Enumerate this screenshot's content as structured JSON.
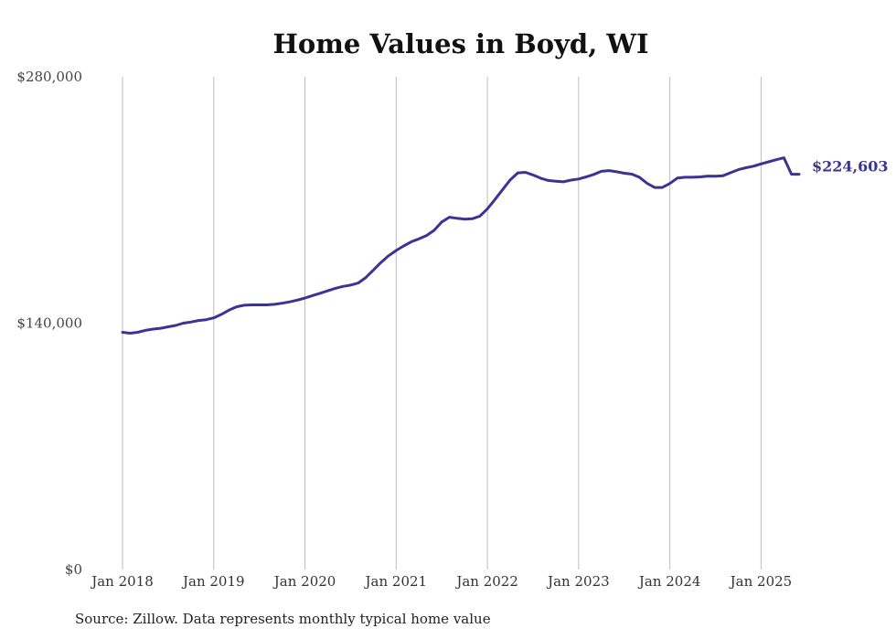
{
  "chart_data": {
    "type": "line",
    "title": "Home Values in Boyd, WI",
    "xlabel": "",
    "ylabel": "",
    "ylim": [
      0,
      280000
    ],
    "xlim": [
      "2018-01",
      "2025-06"
    ],
    "yticks": [
      {
        "value": 0,
        "label": "$0"
      },
      {
        "value": 140000,
        "label": "$140,000"
      },
      {
        "value": 280000,
        "label": "$280,000"
      }
    ],
    "xticks": [
      {
        "value": "2018-01",
        "label": "Jan 2018"
      },
      {
        "value": "2019-01",
        "label": "Jan 2019"
      },
      {
        "value": "2020-01",
        "label": "Jan 2020"
      },
      {
        "value": "2021-01",
        "label": "Jan 2021"
      },
      {
        "value": "2022-01",
        "label": "Jan 2022"
      },
      {
        "value": "2023-01",
        "label": "Jan 2023"
      },
      {
        "value": "2024-01",
        "label": "Jan 2024"
      },
      {
        "value": "2025-01",
        "label": "Jan 2025"
      }
    ],
    "grid": {
      "vertical": true,
      "horizontal": false
    },
    "color": "#3b3493",
    "series": [
      {
        "x": [
          "2018-01",
          "2018-02",
          "2018-03",
          "2018-04",
          "2018-05",
          "2018-06",
          "2018-07",
          "2018-08",
          "2018-09",
          "2018-10",
          "2018-11",
          "2018-12",
          "2019-01",
          "2019-02",
          "2019-03",
          "2019-04",
          "2019-05",
          "2019-06",
          "2019-07",
          "2019-08",
          "2019-09",
          "2019-10",
          "2019-11",
          "2019-12",
          "2020-01",
          "2020-02",
          "2020-03",
          "2020-04",
          "2020-05",
          "2020-06",
          "2020-07",
          "2020-08",
          "2020-09",
          "2020-10",
          "2020-11",
          "2020-12",
          "2021-01",
          "2021-02",
          "2021-03",
          "2021-04",
          "2021-05",
          "2021-06",
          "2021-07",
          "2021-08",
          "2021-09",
          "2021-10",
          "2021-11",
          "2021-12",
          "2022-01",
          "2022-02",
          "2022-03",
          "2022-04",
          "2022-05",
          "2022-06",
          "2022-07",
          "2022-08",
          "2022-09",
          "2022-10",
          "2022-11",
          "2022-12",
          "2023-01",
          "2023-02",
          "2023-03",
          "2023-04",
          "2023-05",
          "2023-06",
          "2023-07",
          "2023-08",
          "2023-09",
          "2023-10",
          "2023-11",
          "2023-12",
          "2024-01",
          "2024-02",
          "2024-03",
          "2024-04",
          "2024-05",
          "2024-06",
          "2024-07",
          "2024-08",
          "2024-09",
          "2024-10",
          "2024-11",
          "2024-12",
          "2025-01",
          "2025-02",
          "2025-03",
          "2025-04",
          "2025-05",
          "2025-06"
        ],
        "values": [
          134800,
          134300,
          134800,
          135900,
          136600,
          137100,
          137900,
          138700,
          140000,
          140600,
          141500,
          142000,
          143000,
          145000,
          147400,
          149300,
          150200,
          150400,
          150400,
          150400,
          150700,
          151300,
          152100,
          153100,
          154300,
          155700,
          157000,
          158400,
          159800,
          160900,
          161600,
          162800,
          165900,
          170200,
          174500,
          178300,
          181300,
          183900,
          186300,
          187900,
          189800,
          192800,
          197500,
          200200,
          199600,
          199100,
          199300,
          200800,
          205000,
          210300,
          215900,
          221400,
          225400,
          225700,
          224200,
          222400,
          221100,
          220700,
          220300,
          221300,
          221900,
          223100,
          224500,
          226300,
          226700,
          226000,
          225200,
          224700,
          222900,
          219500,
          217100,
          217100,
          219400,
          222500,
          222900,
          222900,
          223100,
          223600,
          223500,
          223800,
          225500,
          227200,
          228300,
          229200,
          230500,
          231700,
          232900,
          234000,
          224603,
          224603
        ]
      }
    ],
    "end_label": "$224,603"
  },
  "source": "Source: Zillow. Data represents monthly typical home value"
}
